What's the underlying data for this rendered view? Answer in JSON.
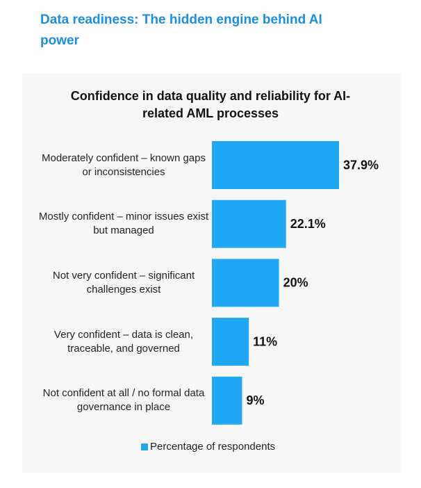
{
  "header": {
    "title": "Data readiness: The hidden engine behind AI power"
  },
  "chart_data": {
    "type": "bar",
    "orientation": "horizontal",
    "title": "Confidence in data quality and reliability for AI-related AML processes",
    "categories": [
      "Moderately confident – known gaps or inconsistencies",
      "Mostly confident – minor issues exist but managed",
      "Not very confident – significant challenges exist",
      "Very confident – data is clean, traceable, and governed",
      "Not confident at all / no formal data governance in place"
    ],
    "series": [
      {
        "name": "Percentage of respondents",
        "color": "#21a8f4",
        "values": [
          37.9,
          22.1,
          20,
          11,
          9
        ],
        "value_labels": [
          "37.9%",
          "22.1%",
          "20%",
          "11%",
          "9%"
        ]
      }
    ],
    "legend": "bottom"
  }
}
